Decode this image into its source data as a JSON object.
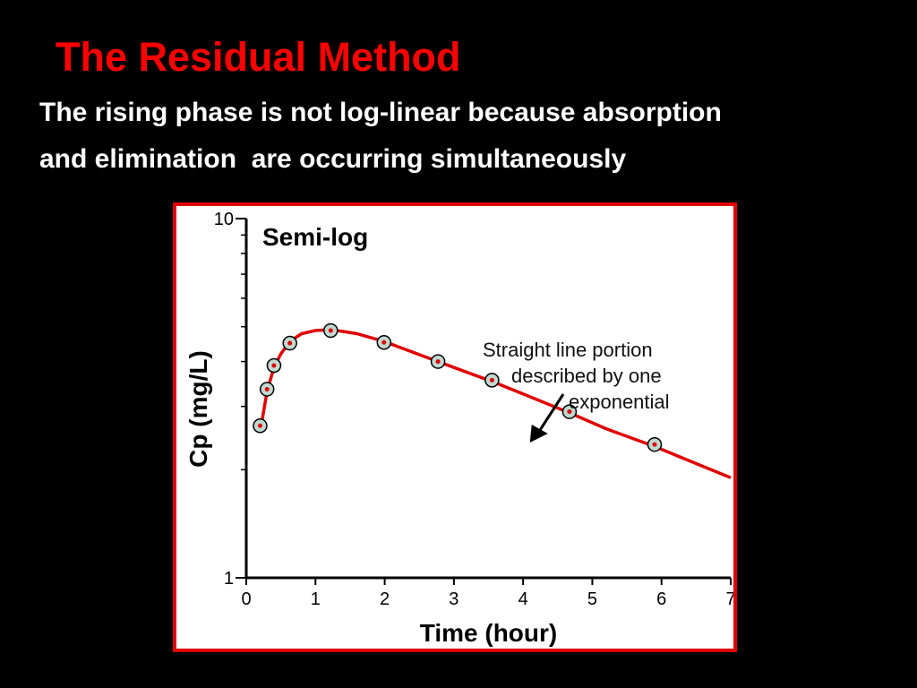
{
  "slide": {
    "title": "The Residual Method",
    "subtitle_lines": [
      "The rising phase is not log-linear because absorption",
      "and elimination  are occurring simultaneously"
    ]
  },
  "colors": {
    "background": "#000000",
    "title": "#ff0000",
    "subtitle": "#ffffff",
    "frame": "#e10000",
    "curve": "#e00000",
    "marker_fill": "#c0d8d0"
  },
  "chart_data": {
    "type": "scatter",
    "title": "Semi-log",
    "xlabel": "Time (hour)",
    "ylabel": "Cp (mg/L)",
    "xlim": [
      0,
      7
    ],
    "ylim": [
      1,
      10
    ],
    "y_scale": "log",
    "x_ticks": [
      "0",
      "1",
      "2",
      "3",
      "4",
      "5",
      "6",
      "7"
    ],
    "y_ticks": [
      "1",
      "10"
    ],
    "grid": false,
    "legend": "none",
    "annotation": {
      "lines": [
        "Straight line portion",
        "described by one",
        "exponential"
      ],
      "points_to_x": 4.15
    },
    "points": {
      "x": [
        0.2,
        0.3,
        0.4,
        0.63,
        1.22,
        1.99,
        2.77,
        3.55,
        4.67,
        5.9
      ],
      "y": [
        2.65,
        3.35,
        3.9,
        4.5,
        4.88,
        4.52,
        4.0,
        3.55,
        2.9,
        2.35
      ]
    },
    "fitted_curve": {
      "x": [
        0.2,
        0.3,
        0.4,
        0.5,
        0.63,
        0.8,
        1.0,
        1.22,
        1.4,
        1.6,
        1.99,
        2.5,
        3.0,
        3.55,
        4.0,
        4.67,
        5.2,
        5.9,
        6.5,
        7.0
      ],
      "y": [
        2.55,
        3.3,
        3.85,
        4.2,
        4.55,
        4.78,
        4.88,
        4.9,
        4.85,
        4.78,
        4.55,
        4.18,
        3.85,
        3.52,
        3.25,
        2.88,
        2.6,
        2.32,
        2.08,
        1.9
      ]
    }
  }
}
